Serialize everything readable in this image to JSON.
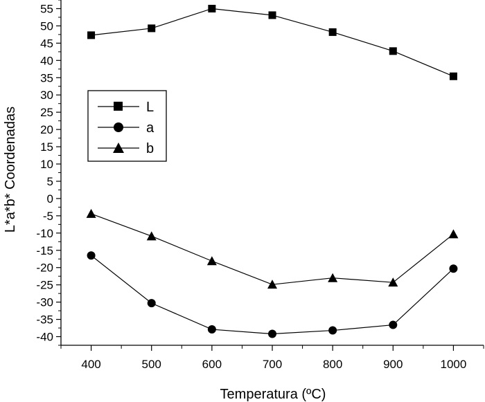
{
  "chart_data": {
    "type": "line",
    "title": "",
    "xlabel": "Temperatura (ºC)",
    "ylabel": "L*a*b* Coordenadas",
    "x": [
      400,
      500,
      600,
      700,
      800,
      900,
      1000
    ],
    "xlim": [
      350,
      1050
    ],
    "ylim": [
      -42.5,
      57.5
    ],
    "xticks": [
      "400",
      "500",
      "600",
      "700",
      "800",
      "900",
      "1000"
    ],
    "yticks": [
      "55",
      "50",
      "45",
      "40",
      "35",
      "30",
      "25",
      "20",
      "15",
      "10",
      "5",
      "0",
      "-5",
      "-10",
      "-15",
      "-20",
      "-25",
      "-30",
      "-35",
      "-40"
    ],
    "grid": false,
    "legend_position": "upper-left",
    "series": [
      {
        "name": "L",
        "marker": "square",
        "values": [
          47.3,
          49.3,
          55.0,
          53.1,
          48.2,
          42.7,
          35.4
        ]
      },
      {
        "name": "a",
        "marker": "circle",
        "values": [
          -16.5,
          -30.3,
          -37.9,
          -39.2,
          -38.2,
          -36.6,
          -20.3
        ]
      },
      {
        "name": "b",
        "marker": "triangle",
        "values": [
          -4.4,
          -10.9,
          -18.1,
          -24.9,
          -23.0,
          -24.3,
          -10.3
        ]
      }
    ],
    "colors": {
      "line": "#000000",
      "marker": "#000000",
      "background": "#ffffff"
    }
  }
}
